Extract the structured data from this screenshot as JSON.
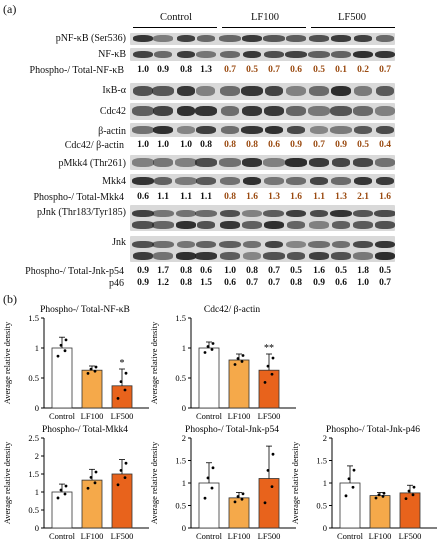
{
  "panel_a_label": "(a)",
  "panel_b_label": "(b)",
  "groups": [
    "Control",
    "LF100",
    "LF500"
  ],
  "blots": [
    {
      "label": "pNF-κB (Ser536)"
    },
    {
      "label": "NF-κB"
    },
    {
      "label": "IκB-α"
    },
    {
      "label": "Cdc42"
    },
    {
      "label": "β-actin"
    },
    {
      "label": "pMkk4 (Thr261)"
    },
    {
      "label": "Mkk4"
    },
    {
      "label": "pJnk (Thr183/Tyr185)"
    },
    {
      "label": "Jnk"
    }
  ],
  "ratios": [
    {
      "label": "Phospho-/ Total-NF-κB",
      "values": [
        "1.0",
        "0.9",
        "0.8",
        "1.3",
        "0.7",
        "0.5",
        "0.7",
        "0.6",
        "0.5",
        "0.1",
        "0.2",
        "0.7"
      ]
    },
    {
      "label": "Cdc42/ β-actin",
      "values": [
        "1.0",
        "1.0",
        "1.0",
        "0.8",
        "0.8",
        "0.8",
        "0.6",
        "0.9",
        "0.7",
        "0.9",
        "0.5",
        "0.4"
      ]
    },
    {
      "label": "Phospho-/ Total-Mkk4",
      "values": [
        "0.6",
        "1.1",
        "1.1",
        "1.1",
        "0.8",
        "1.6",
        "1.3",
        "1.6",
        "1.1",
        "1.3",
        "2.1",
        "1.6"
      ]
    },
    {
      "label": "Phospho-/ Total-Jnk-p54",
      "values": [
        "0.9",
        "1.7",
        "0.8",
        "0.6",
        "1.0",
        "0.8",
        "0.7",
        "0.5",
        "1.6",
        "0.5",
        "1.8",
        "0.5"
      ]
    },
    {
      "label": "p46",
      "values": [
        "0.9",
        "1.2",
        "0.8",
        "1.5",
        "0.6",
        "0.7",
        "0.7",
        "0.8",
        "0.9",
        "0.6",
        "1.0",
        "0.7"
      ]
    }
  ],
  "colors": {
    "control": "#ffffff",
    "lf100": "#f5a94a",
    "lf500": "#e8631c",
    "value_black": "#111111",
    "value_brown": "#9a4a10"
  },
  "chart_data": [
    {
      "type": "bar",
      "title": "Phospho-/ Total-NF-κB",
      "ylabel": "Average relative density",
      "categories": [
        "Control",
        "LF100",
        "LF500"
      ],
      "values": [
        1.0,
        0.63,
        0.37
      ],
      "errors": [
        0.18,
        0.07,
        0.28
      ],
      "ylim": [
        0,
        1.5
      ],
      "ticks": [
        0,
        0.5,
        1,
        1.5
      ],
      "annotations": [
        "",
        "",
        "*"
      ]
    },
    {
      "type": "bar",
      "title": "Cdc42/ β-actin",
      "ylabel": "Average relative density",
      "categories": [
        "Control",
        "LF100",
        "LF500"
      ],
      "values": [
        1.0,
        0.8,
        0.63
      ],
      "errors": [
        0.1,
        0.1,
        0.27
      ],
      "ylim": [
        0,
        1.5
      ],
      "ticks": [
        0,
        0.5,
        1,
        1.5
      ],
      "annotations": [
        "",
        "",
        "**"
      ]
    },
    {
      "type": "bar",
      "title": "Phospho-/ Total-Mkk4",
      "ylabel": "Average relative density",
      "categories": [
        "Control",
        "LF100",
        "LF500"
      ],
      "values": [
        1.0,
        1.33,
        1.5
      ],
      "errors": [
        0.22,
        0.3,
        0.4
      ],
      "ylim": [
        0,
        2.5
      ],
      "ticks": [
        0,
        0.5,
        1,
        1.5,
        2,
        2.5
      ],
      "annotations": [
        "",
        "",
        ""
      ]
    },
    {
      "type": "bar",
      "title": "Phospho-/ Total-Jnk-p54",
      "ylabel": "Average relative density",
      "categories": [
        "Control",
        "LF100",
        "LF500"
      ],
      "values": [
        1.0,
        0.67,
        1.1
      ],
      "errors": [
        0.45,
        0.12,
        0.72
      ],
      "ylim": [
        0,
        2
      ],
      "ticks": [
        0,
        0.5,
        1,
        1.5,
        2
      ],
      "annotations": [
        "",
        "",
        ""
      ]
    },
    {
      "type": "bar",
      "title": "Phospho-/ Total-Jnk-p46",
      "ylabel": "Average relative density",
      "categories": [
        "Control",
        "LF100",
        "LF500"
      ],
      "values": [
        1.0,
        0.72,
        0.78
      ],
      "errors": [
        0.38,
        0.07,
        0.17
      ],
      "ylim": [
        0,
        2
      ],
      "ticks": [
        0,
        0.5,
        1,
        1.5,
        2
      ],
      "annotations": [
        "",
        "",
        ""
      ]
    }
  ]
}
